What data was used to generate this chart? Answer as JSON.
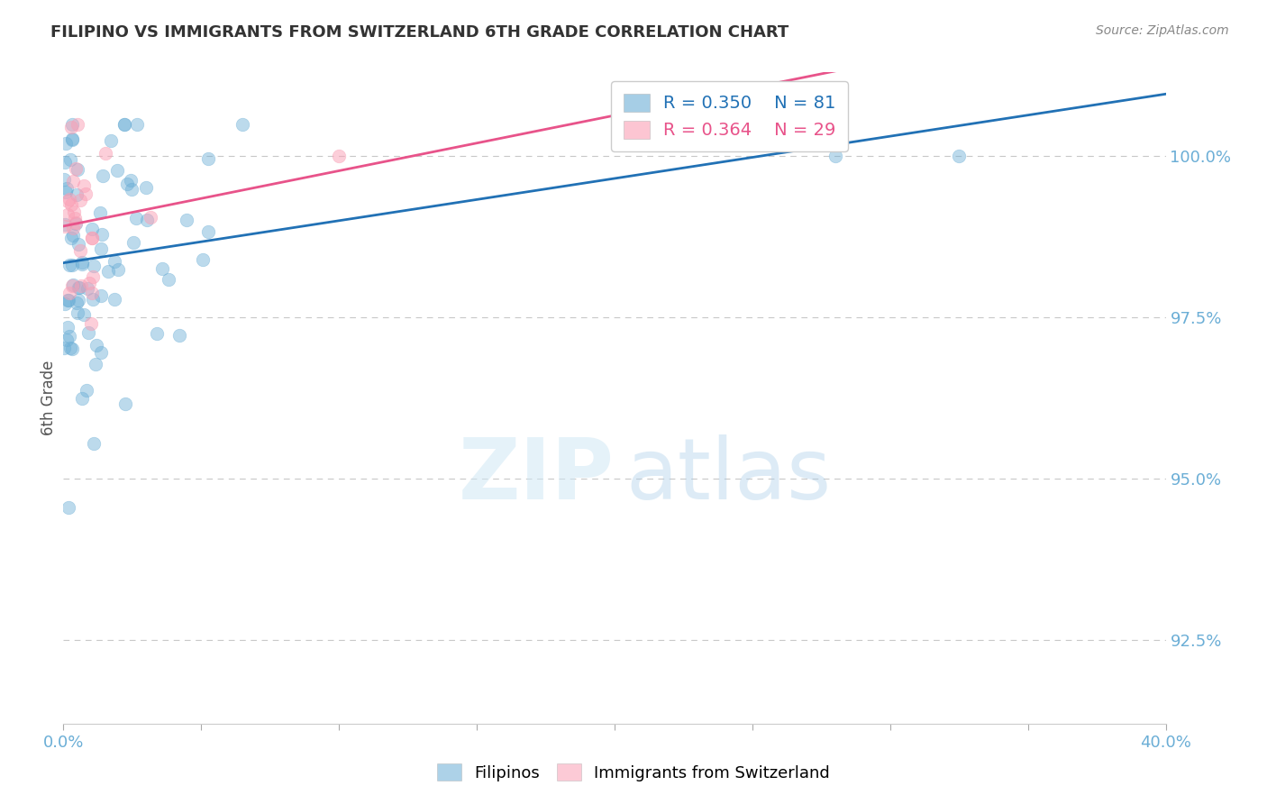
{
  "title": "FILIPINO VS IMMIGRANTS FROM SWITZERLAND 6TH GRADE CORRELATION CHART",
  "source": "Source: ZipAtlas.com",
  "ylabel": "6th Grade",
  "y_tick_labels": [
    "92.5%",
    "95.0%",
    "97.5%",
    "100.0%"
  ],
  "y_tick_values": [
    92.5,
    95.0,
    97.5,
    100.0
  ],
  "xlim": [
    0.0,
    40.0
  ],
  "ylim": [
    91.2,
    101.3
  ],
  "blue_R": 0.35,
  "blue_N": 81,
  "pink_R": 0.364,
  "pink_N": 29,
  "blue_color": "#6baed6",
  "pink_color": "#fa9fb5",
  "blue_line_color": "#2171b5",
  "pink_line_color": "#e8538a",
  "legend_label_blue": "Filipinos",
  "legend_label_pink": "Immigrants from Switzerland",
  "watermark_zip": "ZIP",
  "watermark_atlas": "atlas",
  "background_color": "#ffffff",
  "title_color": "#333333",
  "axis_label_color": "#6baed6",
  "grid_color": "#c8c8c8",
  "tick_color": "#aaaaaa"
}
